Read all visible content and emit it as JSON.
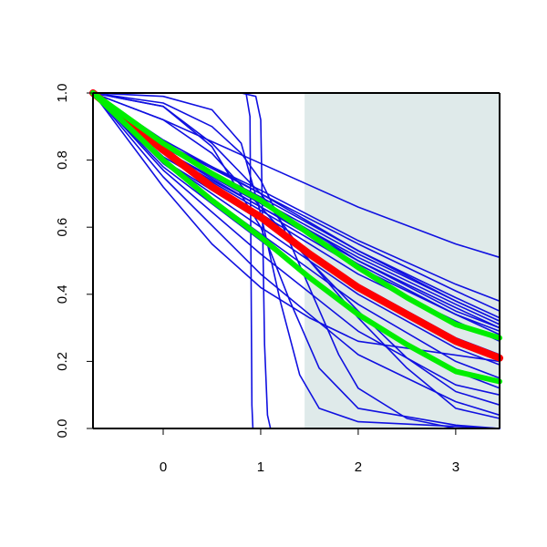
{
  "chart_data": {
    "type": "line",
    "title": "",
    "xlabel": "",
    "ylabel": "",
    "xlim": [
      -0.72,
      3.45
    ],
    "ylim": [
      0.0,
      1.0
    ],
    "x_ticks": [
      0,
      1,
      2,
      3
    ],
    "x_tick_labels": [
      "0",
      "1",
      "2",
      "3"
    ],
    "y_ticks": [
      0.0,
      0.2,
      0.4,
      0.6,
      0.8,
      1.0
    ],
    "y_tick_labels": [
      "0.0",
      "0.2",
      "0.4",
      "0.6",
      "0.8",
      "1.0"
    ],
    "grid": false,
    "legend": false,
    "shaded_region": {
      "x_from": 1.45,
      "x_to": 3.45,
      "color": "#dfeaea"
    },
    "colors": {
      "blue": "#1010e0",
      "red": "#ff0000",
      "green": "#00ee00",
      "axes": "#000000"
    },
    "series": [
      {
        "color": "blue",
        "points": [
          [
            -0.72,
            1.0
          ],
          [
            0.0,
            0.81
          ],
          [
            1.0,
            0.64
          ],
          [
            2.0,
            0.46
          ],
          [
            3.0,
            0.32
          ],
          [
            3.45,
            0.26
          ]
        ]
      },
      {
        "color": "blue",
        "points": [
          [
            -0.72,
            1.0
          ],
          [
            0.0,
            0.82
          ],
          [
            1.0,
            0.65
          ],
          [
            2.0,
            0.48
          ],
          [
            3.0,
            0.34
          ],
          [
            3.45,
            0.28
          ]
        ]
      },
      {
        "color": "blue",
        "points": [
          [
            -0.72,
            1.0
          ],
          [
            0.0,
            0.83
          ],
          [
            1.0,
            0.66
          ],
          [
            2.0,
            0.5
          ],
          [
            3.0,
            0.36
          ],
          [
            3.45,
            0.3
          ]
        ]
      },
      {
        "color": "blue",
        "points": [
          [
            -0.72,
            1.0
          ],
          [
            0.0,
            0.83
          ],
          [
            1.0,
            0.67
          ],
          [
            2.0,
            0.51
          ],
          [
            3.0,
            0.37
          ],
          [
            3.45,
            0.31
          ]
        ]
      },
      {
        "color": "blue",
        "points": [
          [
            -0.72,
            1.0
          ],
          [
            0.0,
            0.84
          ],
          [
            1.0,
            0.68
          ],
          [
            2.0,
            0.52
          ],
          [
            3.0,
            0.38
          ],
          [
            3.45,
            0.32
          ]
        ]
      },
      {
        "color": "blue",
        "points": [
          [
            -0.72,
            1.0
          ],
          [
            0.0,
            0.84
          ],
          [
            1.0,
            0.69
          ],
          [
            2.0,
            0.53
          ],
          [
            3.0,
            0.39
          ],
          [
            3.45,
            0.33
          ]
        ]
      },
      {
        "color": "blue",
        "points": [
          [
            -0.72,
            1.0
          ],
          [
            0.0,
            0.85
          ],
          [
            1.0,
            0.7
          ],
          [
            2.0,
            0.55
          ],
          [
            3.0,
            0.41
          ],
          [
            3.45,
            0.35
          ]
        ]
      },
      {
        "color": "blue",
        "points": [
          [
            -0.72,
            1.0
          ],
          [
            0.0,
            0.85
          ],
          [
            1.0,
            0.71
          ],
          [
            2.0,
            0.56
          ],
          [
            3.0,
            0.43
          ],
          [
            3.45,
            0.38
          ]
        ]
      },
      {
        "color": "blue",
        "points": [
          [
            -0.72,
            1.0
          ],
          [
            0.0,
            0.84
          ],
          [
            1.0,
            0.68
          ],
          [
            2.0,
            0.5
          ],
          [
            3.0,
            0.35
          ],
          [
            3.45,
            0.3
          ]
        ]
      },
      {
        "color": "blue",
        "points": [
          [
            -0.72,
            1.0
          ],
          [
            0.0,
            0.82
          ],
          [
            1.0,
            0.66
          ],
          [
            2.0,
            0.49
          ],
          [
            3.0,
            0.34
          ],
          [
            3.45,
            0.29
          ]
        ]
      },
      {
        "color": "blue",
        "points": [
          [
            -0.72,
            1.0
          ],
          [
            0.0,
            0.86
          ],
          [
            1.0,
            0.7
          ],
          [
            2.0,
            0.53
          ],
          [
            3.0,
            0.38
          ],
          [
            3.45,
            0.32
          ]
        ]
      },
      {
        "color": "blue",
        "points": [
          [
            -0.72,
            1.0
          ],
          [
            0.0,
            0.8
          ],
          [
            1.0,
            0.62
          ],
          [
            2.0,
            0.43
          ],
          [
            3.0,
            0.27
          ],
          [
            3.45,
            0.22
          ]
        ]
      },
      {
        "color": "blue",
        "points": [
          [
            -0.72,
            1.0
          ],
          [
            0.0,
            0.8
          ],
          [
            1.0,
            0.6
          ],
          [
            2.0,
            0.4
          ],
          [
            3.0,
            0.24
          ],
          [
            3.45,
            0.19
          ]
        ]
      },
      {
        "color": "blue",
        "points": [
          [
            -0.72,
            1.0
          ],
          [
            0.0,
            0.79
          ],
          [
            1.0,
            0.58
          ],
          [
            2.0,
            0.37
          ],
          [
            3.0,
            0.2
          ],
          [
            3.45,
            0.15
          ]
        ]
      },
      {
        "color": "blue",
        "points": [
          [
            -0.72,
            1.0
          ],
          [
            0.0,
            0.78
          ],
          [
            1.0,
            0.56
          ],
          [
            2.0,
            0.34
          ],
          [
            3.0,
            0.17
          ],
          [
            3.45,
            0.12
          ]
        ]
      },
      {
        "color": "blue",
        "points": [
          [
            -0.72,
            1.0
          ],
          [
            0.0,
            0.77
          ],
          [
            1.0,
            0.52
          ],
          [
            2.0,
            0.29
          ],
          [
            3.0,
            0.13
          ],
          [
            3.45,
            0.1
          ]
        ]
      },
      {
        "color": "blue",
        "points": [
          [
            -0.72,
            1.0
          ],
          [
            0.0,
            0.75
          ],
          [
            1.0,
            0.46
          ],
          [
            2.0,
            0.22
          ],
          [
            3.0,
            0.08
          ],
          [
            3.45,
            0.04
          ]
        ]
      },
      {
        "color": "blue",
        "points": [
          [
            -0.72,
            1.0
          ],
          [
            0.0,
            0.92
          ],
          [
            1.0,
            0.79
          ],
          [
            2.0,
            0.66
          ],
          [
            3.0,
            0.55
          ],
          [
            3.45,
            0.51
          ]
        ]
      },
      {
        "color": "blue",
        "points": [
          [
            -0.72,
            1.0
          ],
          [
            0.0,
            0.72
          ],
          [
            0.5,
            0.55
          ],
          [
            1.0,
            0.42
          ],
          [
            1.5,
            0.33
          ],
          [
            2.0,
            0.26
          ],
          [
            3.45,
            0.2
          ]
        ]
      },
      {
        "color": "blue",
        "points": [
          [
            -0.72,
            1.0
          ],
          [
            0.0,
            0.96
          ],
          [
            0.5,
            0.84
          ],
          [
            1.0,
            0.6
          ],
          [
            1.3,
            0.38
          ],
          [
            1.6,
            0.18
          ],
          [
            2.0,
            0.06
          ],
          [
            3.0,
            0.01
          ],
          [
            3.45,
            0.0
          ]
        ]
      },
      {
        "color": "blue",
        "points": [
          [
            -0.72,
            1.0
          ],
          [
            0.0,
            0.99
          ],
          [
            0.5,
            0.95
          ],
          [
            0.8,
            0.85
          ],
          [
            1.0,
            0.64
          ],
          [
            1.2,
            0.38
          ],
          [
            1.4,
            0.16
          ],
          [
            1.6,
            0.06
          ],
          [
            2.0,
            0.02
          ],
          [
            3.45,
            0.0
          ]
        ]
      },
      {
        "color": "blue",
        "points": [
          [
            -0.72,
            1.0
          ],
          [
            0.0,
            0.96
          ],
          [
            0.5,
            0.85
          ],
          [
            1.0,
            0.7
          ],
          [
            1.5,
            0.5
          ],
          [
            2.0,
            0.35
          ],
          [
            2.5,
            0.21
          ],
          [
            3.0,
            0.11
          ],
          [
            3.45,
            0.07
          ]
        ]
      },
      {
        "color": "blue",
        "points": [
          [
            -0.72,
            1.0
          ],
          [
            0.0,
            0.92
          ],
          [
            0.5,
            0.82
          ],
          [
            1.0,
            0.66
          ],
          [
            1.5,
            0.5
          ],
          [
            2.0,
            0.33
          ],
          [
            2.5,
            0.18
          ],
          [
            3.0,
            0.06
          ],
          [
            3.45,
            0.03
          ]
        ]
      },
      {
        "color": "blue",
        "points": [
          [
            -0.72,
            1.0
          ],
          [
            0.0,
            0.97
          ],
          [
            0.5,
            0.9
          ],
          [
            0.8,
            0.82
          ],
          [
            1.0,
            0.74
          ],
          [
            1.2,
            0.62
          ],
          [
            1.5,
            0.42
          ],
          [
            1.8,
            0.22
          ],
          [
            2.0,
            0.12
          ],
          [
            2.5,
            0.03
          ],
          [
            3.0,
            0.0
          ],
          [
            3.45,
            0.0
          ]
        ]
      },
      {
        "color": "blue",
        "points": [
          [
            -0.72,
            1.0
          ],
          [
            0.5,
            1.0
          ],
          [
            0.85,
            1.0
          ],
          [
            0.89,
            0.93
          ],
          [
            0.9,
            0.5
          ],
          [
            0.91,
            0.07
          ],
          [
            0.92,
            0.0
          ],
          [
            3.45,
            0.0
          ]
        ]
      },
      {
        "color": "blue",
        "points": [
          [
            -0.72,
            1.0
          ],
          [
            0.8,
            1.0
          ],
          [
            0.95,
            0.99
          ],
          [
            1.0,
            0.92
          ],
          [
            1.02,
            0.6
          ],
          [
            1.04,
            0.25
          ],
          [
            1.07,
            0.04
          ],
          [
            1.1,
            0.0
          ],
          [
            3.45,
            0.0
          ]
        ]
      },
      {
        "color": "red",
        "width": 8,
        "points": [
          [
            -0.72,
            1.0
          ],
          [
            0.0,
            0.83
          ],
          [
            0.5,
            0.72
          ],
          [
            1.0,
            0.63
          ],
          [
            1.5,
            0.52
          ],
          [
            2.0,
            0.42
          ],
          [
            2.5,
            0.34
          ],
          [
            3.0,
            0.26
          ],
          [
            3.45,
            0.21
          ]
        ]
      },
      {
        "color": "green",
        "width": 6,
        "points": [
          [
            -0.72,
            1.0
          ],
          [
            0.0,
            0.85
          ],
          [
            0.5,
            0.76
          ],
          [
            1.0,
            0.68
          ],
          [
            1.5,
            0.58
          ],
          [
            2.0,
            0.48
          ],
          [
            2.5,
            0.39
          ],
          [
            3.0,
            0.31
          ],
          [
            3.45,
            0.27
          ]
        ]
      },
      {
        "color": "green",
        "width": 6,
        "points": [
          [
            -0.72,
            1.0
          ],
          [
            0.0,
            0.8
          ],
          [
            0.5,
            0.68
          ],
          [
            1.0,
            0.57
          ],
          [
            1.5,
            0.45
          ],
          [
            2.0,
            0.34
          ],
          [
            2.5,
            0.25
          ],
          [
            3.0,
            0.17
          ],
          [
            3.45,
            0.14
          ]
        ]
      }
    ]
  }
}
